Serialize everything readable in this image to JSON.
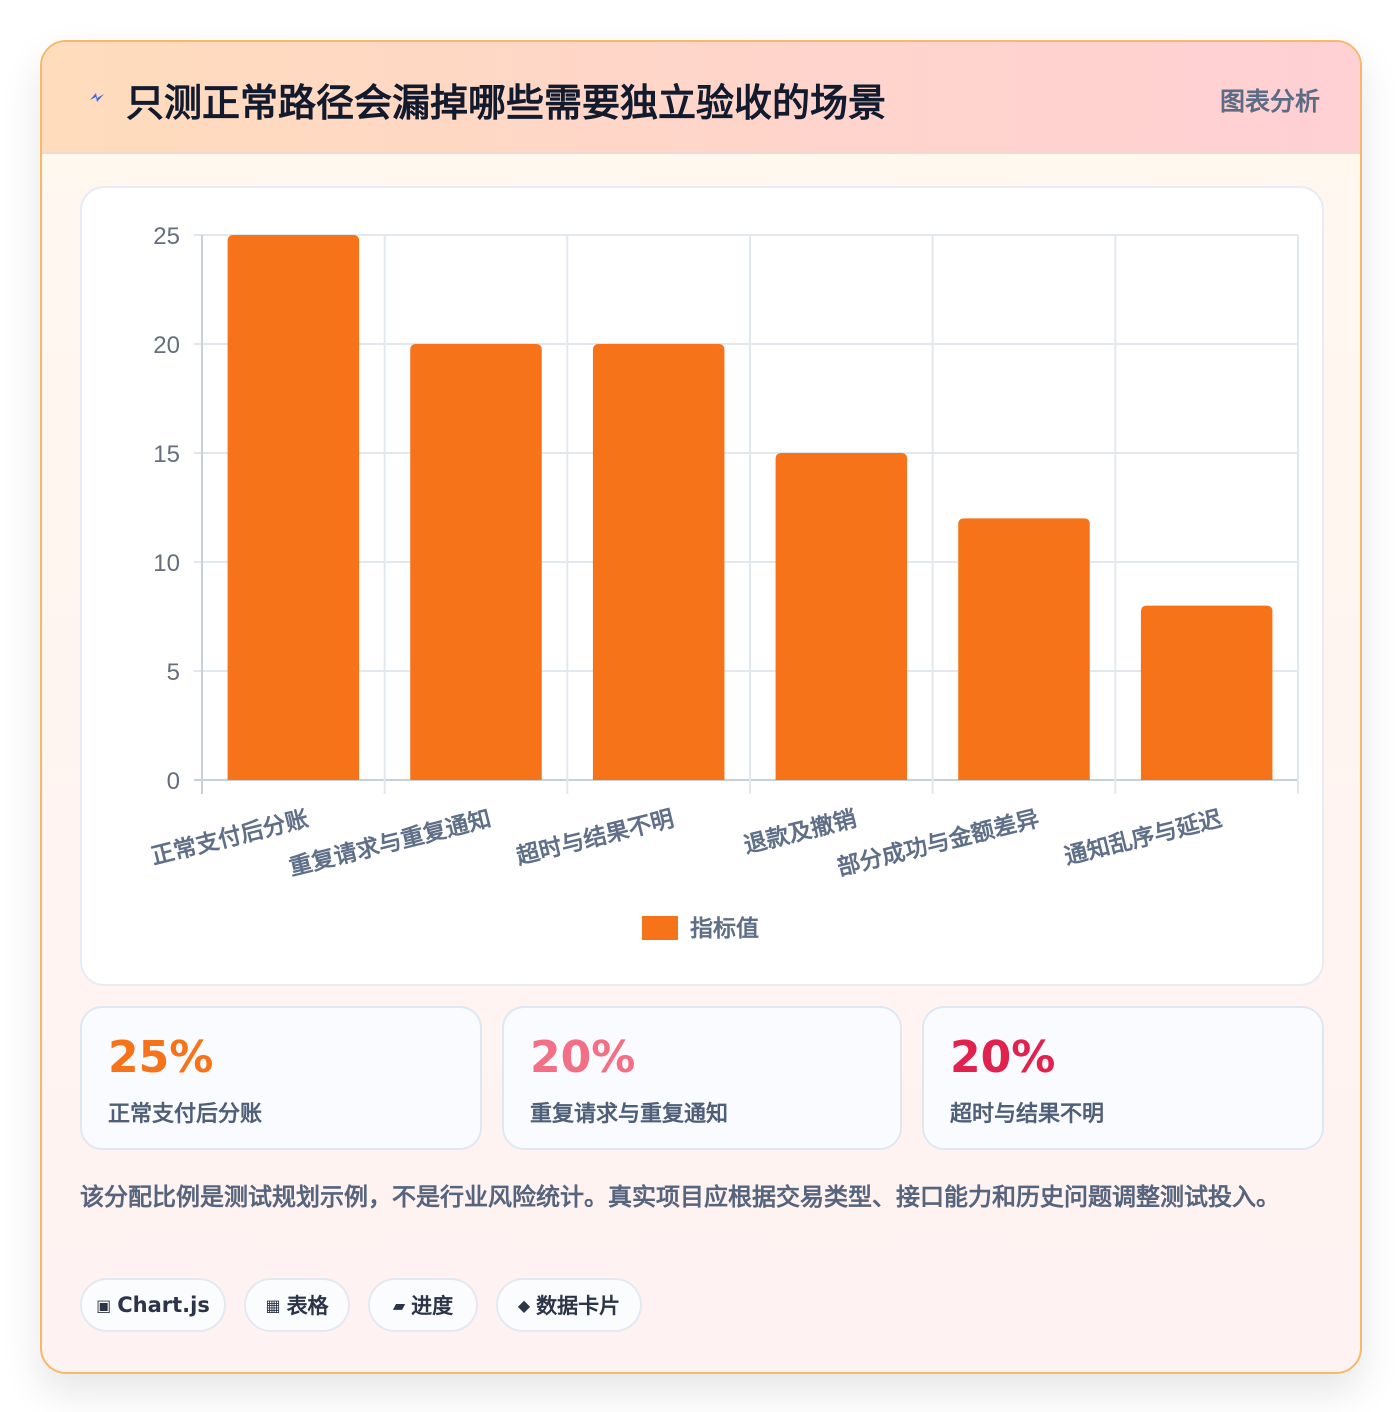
{
  "header": {
    "title": "只测正常路径会漏掉哪些需要独立验收的场景",
    "tag": "图表分析",
    "icon": "lightning-icon"
  },
  "chart_data": {
    "type": "bar",
    "categories": [
      "正常支付后分账",
      "重复请求与重复通知",
      "超时与结果不明",
      "退款及撤销",
      "部分成功与金额差异",
      "通知乱序与延迟"
    ],
    "series": [
      {
        "name": "指标值",
        "values": [
          25,
          20,
          20,
          15,
          12,
          8
        ],
        "color": "#f7731a"
      }
    ],
    "ylim": [
      0,
      25
    ],
    "yticks": [
      0,
      5,
      10,
      15,
      20,
      25
    ],
    "grid": true,
    "legend_position": "bottom"
  },
  "stats": [
    {
      "value": "25%",
      "label": "正常支付后分账",
      "color": "#f7731a"
    },
    {
      "value": "20%",
      "label": "重复请求与重复通知",
      "color": "#f26f86"
    },
    {
      "value": "20%",
      "label": "超时与结果不明",
      "color": "#e0234e"
    }
  ],
  "note": "该分配比例是测试规划示例，不是行业风险统计。真实项目应根据交易类型、接口能力和历史问题调整测试投入。",
  "chips": [
    {
      "icon": "▣",
      "icon_name": "chart-icon",
      "label": "Chart.js"
    },
    {
      "icon": "▦",
      "icon_name": "table-icon",
      "label": "表格"
    },
    {
      "icon": "▰",
      "icon_name": "progress-icon",
      "label": "进度"
    },
    {
      "icon": "◆",
      "icon_name": "data-card-icon",
      "label": "数据卡片"
    }
  ]
}
